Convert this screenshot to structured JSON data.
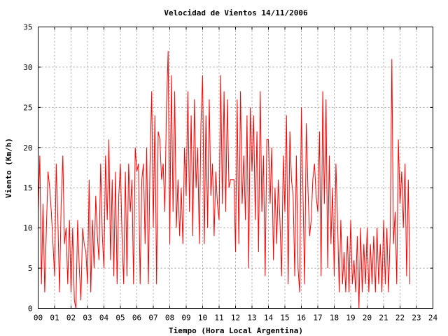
{
  "chart_data": {
    "type": "line",
    "title": "Velocidad de Vientos 14/11/2006",
    "xlabel": "Tiempo (Hora Local Argentina)",
    "ylabel": "Viento (Km/h)",
    "xlim": [
      0,
      24
    ],
    "ylim": [
      0,
      35
    ],
    "grid": true,
    "x_ticks": [
      "00",
      "01",
      "02",
      "03",
      "04",
      "05",
      "06",
      "07",
      "08",
      "09",
      "10",
      "11",
      "12",
      "13",
      "14",
      "15",
      "16",
      "17",
      "18",
      "19",
      "20",
      "21",
      "22",
      "23",
      "24"
    ],
    "y_ticks": [
      0,
      5,
      10,
      15,
      20,
      25,
      30,
      35
    ],
    "series_color": "#ff0000",
    "series": [
      {
        "x": [
          0.0,
          0.1,
          0.2,
          0.3,
          0.4,
          0.5,
          0.6,
          0.7,
          0.8,
          0.9,
          1.0,
          1.1,
          1.2,
          1.3,
          1.4,
          1.5,
          1.6,
          1.7,
          1.8,
          1.9,
          2.0,
          2.1,
          2.2,
          2.3,
          2.4,
          2.5,
          2.6,
          2.7,
          2.8,
          2.9,
          3.0,
          3.1,
          3.2,
          3.3,
          3.4,
          3.5,
          3.6,
          3.7,
          3.8,
          3.9,
          4.0,
          4.1,
          4.2,
          4.3,
          4.4,
          4.5,
          4.6,
          4.7,
          4.8,
          4.9,
          5.0,
          5.1,
          5.2,
          5.3,
          5.4,
          5.5,
          5.6,
          5.7,
          5.8,
          5.9,
          6.0,
          6.1,
          6.2,
          6.3,
          6.4,
          6.5,
          6.6,
          6.7,
          6.8,
          6.9,
          7.0,
          7.1,
          7.2,
          7.3,
          7.4,
          7.5,
          7.6,
          7.7,
          7.8,
          7.9,
          8.0,
          8.1,
          8.2,
          8.3,
          8.4,
          8.5,
          8.6,
          8.7,
          8.8,
          8.9,
          9.0,
          9.1,
          9.2,
          9.3,
          9.4,
          9.5,
          9.6,
          9.7,
          9.8,
          9.9,
          10.0,
          10.1,
          10.2,
          10.3,
          10.4,
          10.5,
          10.6,
          10.7,
          10.8,
          10.9,
          11.0,
          11.1,
          11.2,
          11.3,
          11.4,
          11.5,
          11.6,
          11.7,
          11.8,
          11.9,
          12.0,
          12.1,
          12.2,
          12.3,
          12.4,
          12.5,
          12.6,
          12.7,
          12.8,
          12.9,
          13.0,
          13.1,
          13.2,
          13.3,
          13.4,
          13.5,
          13.6,
          13.7,
          13.8,
          13.9,
          14.0,
          14.1,
          14.2,
          14.3,
          14.4,
          14.5,
          14.6,
          14.7,
          14.8,
          14.9,
          15.0,
          15.1,
          15.2,
          15.3,
          15.4,
          15.5,
          15.6,
          15.7,
          15.8,
          15.9,
          16.0,
          16.1,
          16.2,
          16.3,
          16.4,
          16.5,
          16.6,
          16.7,
          16.8,
          16.9,
          17.0,
          17.1,
          17.2,
          17.3,
          17.4,
          17.5,
          17.6,
          17.7,
          17.8,
          17.9,
          18.0,
          18.1,
          18.2,
          18.3,
          18.4,
          18.5,
          18.6,
          18.7,
          18.8,
          18.9,
          19.0,
          19.1,
          19.2,
          19.3,
          19.4,
          19.5,
          19.6,
          19.7,
          19.8,
          19.9,
          20.0,
          20.1,
          20.2,
          20.3,
          20.4,
          20.5,
          20.6,
          20.7,
          20.8,
          20.9,
          21.0,
          21.1,
          21.2,
          21.3,
          21.4,
          21.5,
          21.6,
          21.7,
          21.8,
          21.9,
          22.0,
          22.1,
          22.2,
          22.3,
          22.4,
          22.5,
          22.6
        ],
        "y": [
          12,
          19,
          3,
          13,
          2,
          10,
          17,
          15,
          12,
          8,
          4,
          18,
          11,
          2,
          13,
          19,
          8,
          10,
          3,
          11,
          2,
          10,
          1,
          0,
          11,
          5,
          1,
          10,
          8,
          7,
          3,
          16,
          2,
          11,
          5,
          14,
          9,
          6,
          18,
          9,
          5,
          19,
          11,
          21,
          6,
          16,
          4,
          17,
          3,
          14,
          18,
          9,
          3,
          17,
          4,
          18,
          12,
          16,
          3,
          20,
          17,
          18,
          3,
          16,
          18,
          8,
          20,
          3,
          18,
          27,
          10,
          24,
          3,
          22,
          21,
          16,
          18,
          12,
          25,
          32,
          8,
          29,
          12,
          27,
          10,
          16,
          9,
          15,
          8,
          20,
          14,
          27,
          12,
          24,
          9,
          26,
          15,
          20,
          8,
          23,
          29,
          8,
          24,
          10,
          26,
          14,
          18,
          9,
          17,
          13,
          11,
          29,
          13,
          27,
          12,
          26,
          15,
          16,
          16,
          16,
          7,
          26,
          8,
          27,
          13,
          19,
          11,
          24,
          5,
          25,
          17,
          24,
          11,
          22,
          7,
          27,
          12,
          19,
          4,
          21,
          21,
          13,
          20,
          6,
          15,
          8,
          16,
          11,
          4,
          19,
          12,
          24,
          3,
          22,
          16,
          14,
          4,
          19,
          5,
          2,
          25,
          14,
          3,
          23,
          15,
          9,
          11,
          16,
          18,
          14,
          12,
          22,
          4,
          27,
          13,
          26,
          5,
          19,
          8,
          15,
          4,
          18,
          11,
          2,
          11,
          3,
          7,
          2,
          9,
          2,
          11,
          3,
          6,
          2,
          9,
          0,
          10,
          2,
          8,
          3,
          10,
          2,
          8,
          3,
          9,
          2,
          10,
          3,
          8,
          2,
          11,
          3,
          10,
          2,
          9,
          31,
          8,
          12,
          3,
          21,
          13,
          17,
          10,
          18,
          4,
          16,
          3
        ]
      }
    ]
  }
}
